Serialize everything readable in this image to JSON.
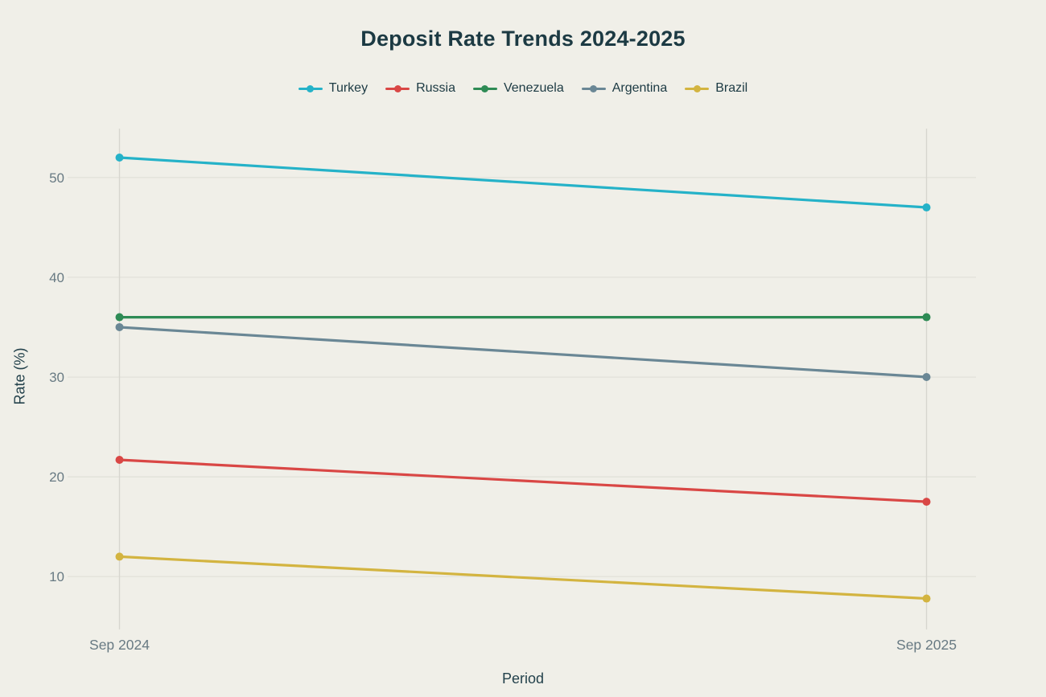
{
  "page": {
    "background": "#f0efe8"
  },
  "chart_data": {
    "type": "line",
    "title": "Deposit Rate Trends 2024-2025",
    "xlabel": "Period",
    "ylabel": "Rate (%)",
    "categories": [
      "Sep 2024",
      "Sep 2025"
    ],
    "series": [
      {
        "name": "Turkey",
        "color": "#25b2c8",
        "values": [
          52,
          47
        ]
      },
      {
        "name": "Russia",
        "color": "#d94745",
        "values": [
          21.7,
          17.5
        ]
      },
      {
        "name": "Venezuela",
        "color": "#2e8b55",
        "values": [
          36,
          36
        ]
      },
      {
        "name": "Argentina",
        "color": "#6a8795",
        "values": [
          35,
          30
        ]
      },
      {
        "name": "Brazil",
        "color": "#d3b440",
        "values": [
          12,
          7.8
        ]
      }
    ],
    "yticks": [
      10,
      20,
      30,
      40,
      50
    ],
    "ylim": [
      4.7,
      54.9
    ],
    "grid": true,
    "legend_position": "top-center",
    "marker_style": "line-with-dot",
    "colors": {
      "title": "#1c3a43",
      "axis_title": "#24424c",
      "tick_label": "#687a83",
      "gridline": "#e3e2da",
      "vertical_gridline": "#d7d6cf",
      "legend_text": "#1c3a43",
      "background": "#f0efe8"
    }
  }
}
